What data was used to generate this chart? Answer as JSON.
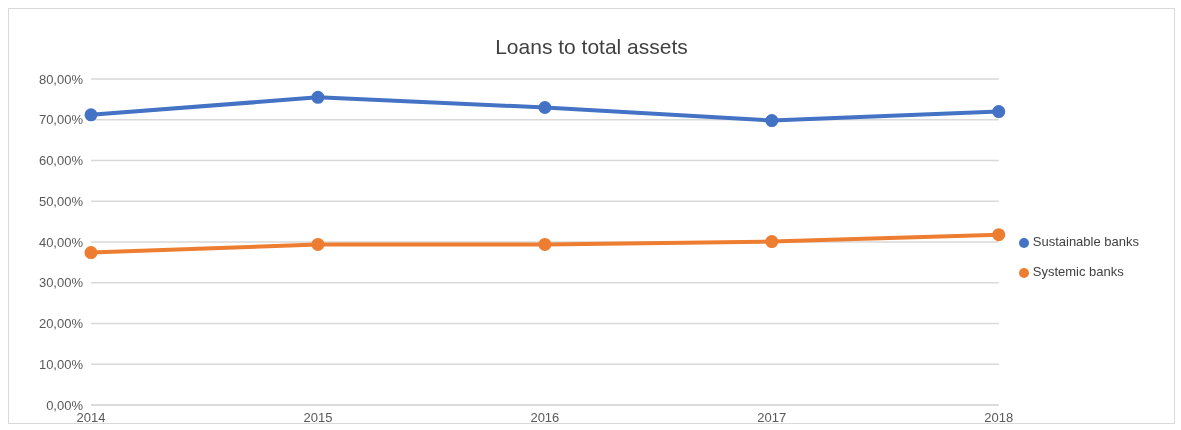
{
  "chart_data": {
    "type": "line",
    "title": "Loans to total assets",
    "categories": [
      "2014",
      "2015",
      "2016",
      "2017",
      "2018"
    ],
    "series": [
      {
        "name": "Sustainable banks",
        "color": "#4472c4",
        "values": [
          71.2,
          75.5,
          73.0,
          69.8,
          72.0
        ]
      },
      {
        "name": "Systemic banks",
        "color": "#ed7d31",
        "values": [
          37.4,
          39.4,
          39.4,
          40.1,
          41.8
        ]
      }
    ],
    "ylim": [
      0,
      80
    ],
    "yticks": [
      {
        "value": 0,
        "label": "0,00%"
      },
      {
        "value": 10,
        "label": "10,00%"
      },
      {
        "value": 20,
        "label": "20,00%"
      },
      {
        "value": 30,
        "label": "30,00%"
      },
      {
        "value": 40,
        "label": "40,00%"
      },
      {
        "value": 50,
        "label": "50,00%"
      },
      {
        "value": 60,
        "label": "60,00%"
      },
      {
        "value": 70,
        "label": "70,00%"
      },
      {
        "value": 80,
        "label": "80,00%"
      }
    ],
    "grid": "y",
    "legend": "right",
    "marker": "circle",
    "line_style": "solid"
  }
}
